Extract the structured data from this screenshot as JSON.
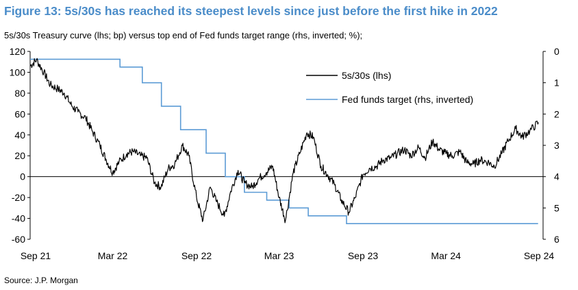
{
  "header": {
    "title": "Figure 13: 5s/30s has reached its steepest levels since just before the first hike in 2022",
    "subtitle": "5s/30s Treasury curve (lhs; bp) versus top end of Fed funds target range (rhs, inverted; %);"
  },
  "footer": {
    "source": "Source: J.P. Morgan"
  },
  "colors": {
    "series_5s30s": "#000000",
    "series_fedfunds": "#5b9bd5",
    "title": "#4a8cc9"
  },
  "chart_data": {
    "type": "line",
    "title": "",
    "x_ticks": [
      "Sep 21",
      "Mar 22",
      "Sep 22",
      "Mar 23",
      "Sep 23",
      "Mar 24",
      "Sep 24"
    ],
    "x_range": [
      "2021-09-01",
      "2024-09-30"
    ],
    "y_left": {
      "label": "bp",
      "ylim": [
        -60,
        120
      ],
      "ticks": [
        "120",
        "100",
        "80",
        "60",
        "40",
        "20",
        "0",
        "-20",
        "-40",
        "-60"
      ]
    },
    "y_right": {
      "label": "%",
      "ylim": [
        0,
        6
      ],
      "inverted": true,
      "ticks": [
        "0",
        "1",
        "2",
        "3",
        "4",
        "5",
        "6"
      ]
    },
    "legend": {
      "placement": "top-right",
      "entries": [
        "5s/30s (lhs)",
        "Fed funds target (rhs, inverted)"
      ]
    },
    "grid": false,
    "series": [
      {
        "name": "5s/30s (lhs)",
        "axis": "left",
        "points": [
          [
            "2021-09-01",
            106
          ],
          [
            "2021-09-15",
            112
          ],
          [
            "2021-10-01",
            100
          ],
          [
            "2021-10-15",
            88
          ],
          [
            "2021-11-01",
            84
          ],
          [
            "2021-11-15",
            80
          ],
          [
            "2021-12-01",
            68
          ],
          [
            "2021-12-15",
            62
          ],
          [
            "2022-01-01",
            56
          ],
          [
            "2022-01-15",
            44
          ],
          [
            "2022-02-01",
            30
          ],
          [
            "2022-02-15",
            16
          ],
          [
            "2022-03-01",
            4
          ],
          [
            "2022-03-15",
            14
          ],
          [
            "2022-04-01",
            22
          ],
          [
            "2022-04-15",
            24
          ],
          [
            "2022-05-01",
            20
          ],
          [
            "2022-05-15",
            18
          ],
          [
            "2022-06-01",
            -6
          ],
          [
            "2022-06-15",
            -10
          ],
          [
            "2022-07-01",
            8
          ],
          [
            "2022-07-15",
            12
          ],
          [
            "2022-08-01",
            30
          ],
          [
            "2022-08-15",
            20
          ],
          [
            "2022-09-01",
            -20
          ],
          [
            "2022-09-15",
            -42
          ],
          [
            "2022-10-01",
            -10
          ],
          [
            "2022-10-15",
            -24
          ],
          [
            "2022-11-01",
            -38
          ],
          [
            "2022-11-15",
            -14
          ],
          [
            "2022-12-01",
            6
          ],
          [
            "2022-12-15",
            -6
          ],
          [
            "2023-01-01",
            -10
          ],
          [
            "2023-01-15",
            -2
          ],
          [
            "2023-02-01",
            4
          ],
          [
            "2023-02-15",
            10
          ],
          [
            "2023-03-01",
            -20
          ],
          [
            "2023-03-15",
            -42
          ],
          [
            "2023-04-01",
            4
          ],
          [
            "2023-04-15",
            22
          ],
          [
            "2023-05-01",
            42
          ],
          [
            "2023-05-15",
            38
          ],
          [
            "2023-06-01",
            10
          ],
          [
            "2023-06-15",
            2
          ],
          [
            "2023-07-01",
            -8
          ],
          [
            "2023-07-15",
            -22
          ],
          [
            "2023-08-01",
            -34
          ],
          [
            "2023-08-15",
            -20
          ],
          [
            "2023-09-01",
            2
          ],
          [
            "2023-09-15",
            8
          ],
          [
            "2023-10-01",
            10
          ],
          [
            "2023-10-15",
            16
          ],
          [
            "2023-11-01",
            18
          ],
          [
            "2023-11-15",
            22
          ],
          [
            "2023-12-01",
            26
          ],
          [
            "2023-12-15",
            20
          ],
          [
            "2024-01-01",
            28
          ],
          [
            "2024-01-15",
            18
          ],
          [
            "2024-02-01",
            34
          ],
          [
            "2024-02-15",
            26
          ],
          [
            "2024-03-01",
            22
          ],
          [
            "2024-03-15",
            20
          ],
          [
            "2024-04-01",
            24
          ],
          [
            "2024-04-15",
            14
          ],
          [
            "2024-05-01",
            12
          ],
          [
            "2024-05-15",
            16
          ],
          [
            "2024-06-01",
            14
          ],
          [
            "2024-06-15",
            10
          ],
          [
            "2024-07-01",
            22
          ],
          [
            "2024-07-15",
            34
          ],
          [
            "2024-08-01",
            46
          ],
          [
            "2024-08-15",
            38
          ],
          [
            "2024-09-01",
            44
          ],
          [
            "2024-09-20",
            52
          ]
        ]
      },
      {
        "name": "Fed funds target (rhs, inverted)",
        "axis": "right",
        "step": true,
        "points": [
          [
            "2021-09-01",
            0.25
          ],
          [
            "2022-03-17",
            0.5
          ],
          [
            "2022-05-05",
            1.0
          ],
          [
            "2022-06-16",
            1.75
          ],
          [
            "2022-07-28",
            2.5
          ],
          [
            "2022-09-22",
            3.25
          ],
          [
            "2022-11-03",
            4.0
          ],
          [
            "2022-12-15",
            4.5
          ],
          [
            "2023-02-02",
            4.75
          ],
          [
            "2023-03-23",
            5.0
          ],
          [
            "2023-05-04",
            5.25
          ],
          [
            "2023-07-27",
            5.5
          ],
          [
            "2024-09-19",
            5.5
          ]
        ]
      }
    ]
  }
}
